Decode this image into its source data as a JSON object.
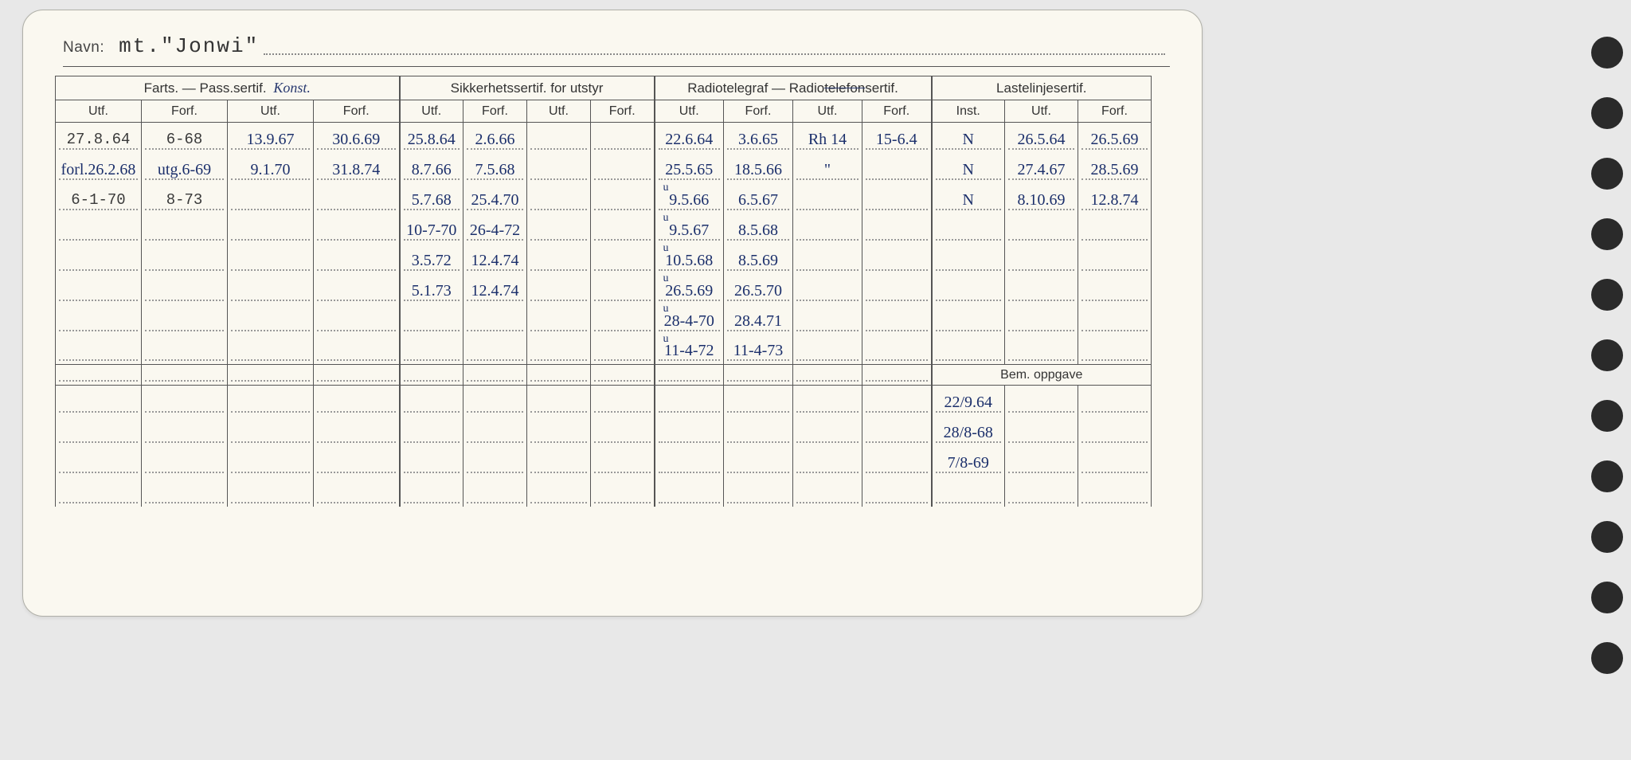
{
  "navn_label": "Navn:",
  "navn_value": "mt.\"Jonwi\"",
  "groups": [
    {
      "title": "Farts. — Pass.sertif.",
      "annot": "Konst.",
      "subs": [
        "Utf.",
        "Forf.",
        "Utf.",
        "Forf."
      ],
      "widths": [
        108,
        108,
        108,
        108
      ]
    },
    {
      "title": "Sikkerhetssertif. for utstyr",
      "subs": [
        "Utf.",
        "Forf.",
        "Utf.",
        "Forf."
      ],
      "widths": [
        80,
        80,
        80,
        80
      ]
    },
    {
      "title": "Radiotelegraf — Radiotelefonsertif.",
      "strike_part": "tele",
      "subs": [
        "Utf.",
        "Forf.",
        "Utf.",
        "Forf."
      ],
      "widths": [
        87,
        87,
        87,
        87
      ]
    },
    {
      "title": "Lastelinjesertif.",
      "subs": [
        "Inst.",
        "Utf.",
        "Forf."
      ],
      "widths": [
        92,
        92,
        92
      ]
    }
  ],
  "rows": [
    [
      {
        "t": "27.8.64",
        "c": "type"
      },
      {
        "t": "6-68",
        "c": "type"
      },
      {
        "t": "13.9.67",
        "c": "hand"
      },
      {
        "t": "30.6.69",
        "c": "hand"
      },
      {
        "t": "25.8.64",
        "c": "hand"
      },
      {
        "t": "2.6.66",
        "c": "hand"
      },
      {
        "t": "",
        "c": ""
      },
      {
        "t": "",
        "c": ""
      },
      {
        "t": "22.6.64",
        "c": "hand"
      },
      {
        "t": "3.6.65",
        "c": "hand"
      },
      {
        "t": "Rh 14",
        "c": "hand"
      },
      {
        "t": "15-6.4",
        "c": "hand"
      },
      {
        "t": "N",
        "c": "hand"
      },
      {
        "t": "26.5.64",
        "c": "hand"
      },
      {
        "t": "26.5.69",
        "c": "hand"
      }
    ],
    [
      {
        "t": "forl.26.2.68",
        "c": "hand"
      },
      {
        "t": "utg.6-69",
        "c": "hand"
      },
      {
        "t": "9.1.70",
        "c": "hand"
      },
      {
        "t": "31.8.74",
        "c": "hand"
      },
      {
        "t": "8.7.66",
        "c": "hand"
      },
      {
        "t": "7.5.68",
        "c": "hand"
      },
      {
        "t": "",
        "c": ""
      },
      {
        "t": "",
        "c": ""
      },
      {
        "t": "25.5.65",
        "c": "hand"
      },
      {
        "t": "18.5.66",
        "c": "hand"
      },
      {
        "t": "\"",
        "c": "hand"
      },
      {
        "t": "",
        "c": ""
      },
      {
        "t": "N",
        "c": "hand"
      },
      {
        "t": "27.4.67",
        "c": "hand"
      },
      {
        "t": "28.5.69",
        "c": "hand"
      }
    ],
    [
      {
        "t": "6-1-70",
        "c": "type"
      },
      {
        "t": "8-73",
        "c": "type"
      },
      {
        "t": "",
        "c": ""
      },
      {
        "t": "",
        "c": ""
      },
      {
        "t": "5.7.68",
        "c": "hand"
      },
      {
        "t": "25.4.70",
        "c": "hand"
      },
      {
        "t": "",
        "c": ""
      },
      {
        "t": "",
        "c": ""
      },
      {
        "t": "9.5.66",
        "c": "hand",
        "tick": "u"
      },
      {
        "t": "6.5.67",
        "c": "hand"
      },
      {
        "t": "",
        "c": ""
      },
      {
        "t": "",
        "c": ""
      },
      {
        "t": "N",
        "c": "hand"
      },
      {
        "t": "8.10.69",
        "c": "hand"
      },
      {
        "t": "12.8.74",
        "c": "hand"
      }
    ],
    [
      {
        "t": "",
        "c": ""
      },
      {
        "t": "",
        "c": ""
      },
      {
        "t": "",
        "c": ""
      },
      {
        "t": "",
        "c": ""
      },
      {
        "t": "10-7-70",
        "c": "hand"
      },
      {
        "t": "26-4-72",
        "c": "hand"
      },
      {
        "t": "",
        "c": ""
      },
      {
        "t": "",
        "c": ""
      },
      {
        "t": "9.5.67",
        "c": "hand",
        "tick": "u"
      },
      {
        "t": "8.5.68",
        "c": "hand"
      },
      {
        "t": "",
        "c": ""
      },
      {
        "t": "",
        "c": ""
      },
      {
        "t": "",
        "c": ""
      },
      {
        "t": "",
        "c": ""
      },
      {
        "t": "",
        "c": ""
      }
    ],
    [
      {
        "t": "",
        "c": ""
      },
      {
        "t": "",
        "c": ""
      },
      {
        "t": "",
        "c": ""
      },
      {
        "t": "",
        "c": ""
      },
      {
        "t": "3.5.72",
        "c": "hand"
      },
      {
        "t": "12.4.74",
        "c": "hand"
      },
      {
        "t": "",
        "c": ""
      },
      {
        "t": "",
        "c": ""
      },
      {
        "t": "10.5.68",
        "c": "hand",
        "tick": "u"
      },
      {
        "t": "8.5.69",
        "c": "hand"
      },
      {
        "t": "",
        "c": ""
      },
      {
        "t": "",
        "c": ""
      },
      {
        "t": "",
        "c": ""
      },
      {
        "t": "",
        "c": ""
      },
      {
        "t": "",
        "c": ""
      }
    ],
    [
      {
        "t": "",
        "c": ""
      },
      {
        "t": "",
        "c": ""
      },
      {
        "t": "",
        "c": ""
      },
      {
        "t": "",
        "c": ""
      },
      {
        "t": "5.1.73",
        "c": "hand"
      },
      {
        "t": "12.4.74",
        "c": "hand"
      },
      {
        "t": "",
        "c": ""
      },
      {
        "t": "",
        "c": ""
      },
      {
        "t": "26.5.69",
        "c": "hand",
        "tick": "u"
      },
      {
        "t": "26.5.70",
        "c": "hand"
      },
      {
        "t": "",
        "c": ""
      },
      {
        "t": "",
        "c": ""
      },
      {
        "t": "",
        "c": ""
      },
      {
        "t": "",
        "c": ""
      },
      {
        "t": "",
        "c": ""
      }
    ],
    [
      {
        "t": "",
        "c": ""
      },
      {
        "t": "",
        "c": ""
      },
      {
        "t": "",
        "c": ""
      },
      {
        "t": "",
        "c": ""
      },
      {
        "t": "",
        "c": ""
      },
      {
        "t": "",
        "c": ""
      },
      {
        "t": "",
        "c": ""
      },
      {
        "t": "",
        "c": ""
      },
      {
        "t": "28-4-70",
        "c": "hand",
        "tick": "u"
      },
      {
        "t": "28.4.71",
        "c": "hand"
      },
      {
        "t": "",
        "c": ""
      },
      {
        "t": "",
        "c": ""
      },
      {
        "t": "",
        "c": ""
      },
      {
        "t": "",
        "c": ""
      },
      {
        "t": "",
        "c": ""
      }
    ],
    [
      {
        "t": "",
        "c": ""
      },
      {
        "t": "",
        "c": ""
      },
      {
        "t": "",
        "c": ""
      },
      {
        "t": "",
        "c": ""
      },
      {
        "t": "",
        "c": ""
      },
      {
        "t": "",
        "c": ""
      },
      {
        "t": "",
        "c": ""
      },
      {
        "t": "",
        "c": ""
      },
      {
        "t": "11-4-72",
        "c": "hand",
        "tick": "u"
      },
      {
        "t": "11-4-73",
        "c": "hand"
      },
      {
        "t": "",
        "c": ""
      },
      {
        "t": "",
        "c": ""
      },
      {
        "t": "",
        "c": ""
      },
      {
        "t": "",
        "c": ""
      },
      {
        "t": "",
        "c": ""
      }
    ]
  ],
  "bem_title": "Bem. oppgave",
  "bem_rows": [
    [
      {
        "t": "22/9.64",
        "c": "hand"
      },
      {
        "t": "",
        "c": ""
      },
      {
        "t": "",
        "c": ""
      }
    ],
    [
      {
        "t": "28/8-68",
        "c": "hand"
      },
      {
        "t": "",
        "c": ""
      },
      {
        "t": "",
        "c": ""
      }
    ],
    [
      {
        "t": "7/8-69",
        "c": "hand"
      },
      {
        "t": "",
        "c": ""
      },
      {
        "t": "",
        "c": ""
      }
    ]
  ],
  "extra_plain_rows": 4,
  "hole_positions": [
    46,
    122,
    198,
    274,
    350,
    426,
    502,
    578,
    654,
    730,
    806
  ],
  "colors": {
    "card": "#faf8f0",
    "line": "#555",
    "dotted": "#999",
    "ink_hand": "#1b2f6b",
    "ink_type": "#3a3a3a"
  }
}
